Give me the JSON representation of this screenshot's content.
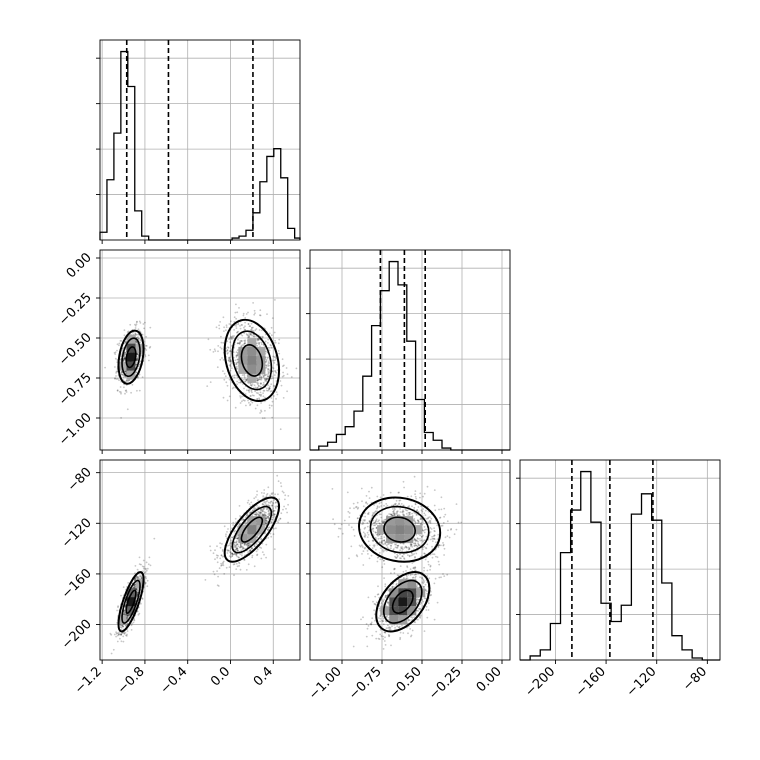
{
  "chart_data": {
    "type": "corner",
    "parameters": [
      {
        "range": [
          -1.22,
          0.65
        ],
        "ticks": [
          -1.2,
          -0.8,
          -0.4,
          0.0,
          0.4
        ],
        "tick_labels": [
          "−1.2",
          "−0.8",
          "−0.4",
          "0.0",
          "0.4"
        ]
      },
      {
        "range": [
          -1.2,
          0.05
        ],
        "ticks": [
          -1.0,
          -0.75,
          -0.5,
          -0.25,
          0.0
        ],
        "tick_labels": [
          "−1.00",
          "−0.75",
          "−0.50",
          "−0.25",
          "0.00"
        ]
      },
      {
        "range": [
          -228,
          -70
        ],
        "ticks": [
          -200,
          -160,
          -120,
          -80
        ],
        "tick_labels": [
          "−200",
          "−160",
          "−120",
          "−80"
        ]
      }
    ],
    "histograms": [
      {
        "edges": [
          -1.22,
          -1.155,
          -1.09,
          -1.025,
          -0.96,
          -0.895,
          -0.83,
          -0.765,
          -0.7,
          -0.635,
          -0.57,
          -0.505,
          -0.44,
          -0.375,
          -0.31,
          -0.245,
          -0.18,
          -0.115,
          -0.05,
          0.015,
          0.08,
          0.145,
          0.21,
          0.275,
          0.34,
          0.405,
          0.47,
          0.535,
          0.6,
          0.65
        ],
        "counts": [
          0.04,
          0.31,
          0.55,
          0.97,
          0.79,
          0.15,
          0.02,
          0.0,
          0.0,
          0.0,
          0.0,
          0.0,
          0.0,
          0.0,
          0.0,
          0.0,
          0.0,
          0.0,
          0.0,
          0.01,
          0.02,
          0.05,
          0.14,
          0.3,
          0.43,
          0.47,
          0.32,
          0.06,
          0.01
        ],
        "quantiles": [
          -0.97,
          -0.58,
          0.21
        ]
      },
      {
        "edges": [
          -1.2,
          -1.145,
          -1.09,
          -1.035,
          -0.98,
          -0.925,
          -0.87,
          -0.815,
          -0.76,
          -0.705,
          -0.65,
          -0.595,
          -0.54,
          -0.485,
          -0.43,
          -0.375,
          -0.32,
          -0.265,
          -0.21,
          -0.155,
          -0.1,
          -0.045,
          0.01,
          0.05
        ],
        "counts": [
          0.0,
          0.02,
          0.04,
          0.08,
          0.12,
          0.2,
          0.38,
          0.64,
          0.82,
          0.97,
          0.85,
          0.56,
          0.26,
          0.09,
          0.05,
          0.01,
          0.0,
          0.0,
          0.0,
          0.0,
          0.0,
          0.0,
          0.0
        ],
        "quantiles": [
          -0.76,
          -0.61,
          -0.48
        ]
      },
      {
        "edges": [
          -228,
          -220,
          -212,
          -204,
          -196,
          -188,
          -180,
          -172,
          -164,
          -156,
          -148,
          -140,
          -132,
          -124,
          -116,
          -108,
          -100,
          -92,
          -84,
          -76,
          -70
        ],
        "counts": [
          0.0,
          0.02,
          0.05,
          0.18,
          0.53,
          0.74,
          0.93,
          0.68,
          0.28,
          0.19,
          0.27,
          0.72,
          0.82,
          0.69,
          0.38,
          0.12,
          0.05,
          0.01,
          0.0,
          0.0
        ],
        "quantiles": [
          -187,
          -157,
          -123
        ]
      }
    ],
    "clusters": [
      {
        "mean": [
          -0.93,
          -0.62,
          -182
        ],
        "std": [
          0.06,
          0.085,
          12.0
        ],
        "corr": [
          0.3,
          0.75,
          0.45
        ],
        "weight": 0.45
      },
      {
        "mean": [
          0.2,
          -0.64,
          -125
        ],
        "std": [
          0.13,
          0.13,
          13.0
        ],
        "corr": [
          -0.25,
          0.72,
          -0.1
        ],
        "weight": 0.55
      }
    ],
    "grid": true,
    "xlabel": "",
    "ylabel": ""
  }
}
